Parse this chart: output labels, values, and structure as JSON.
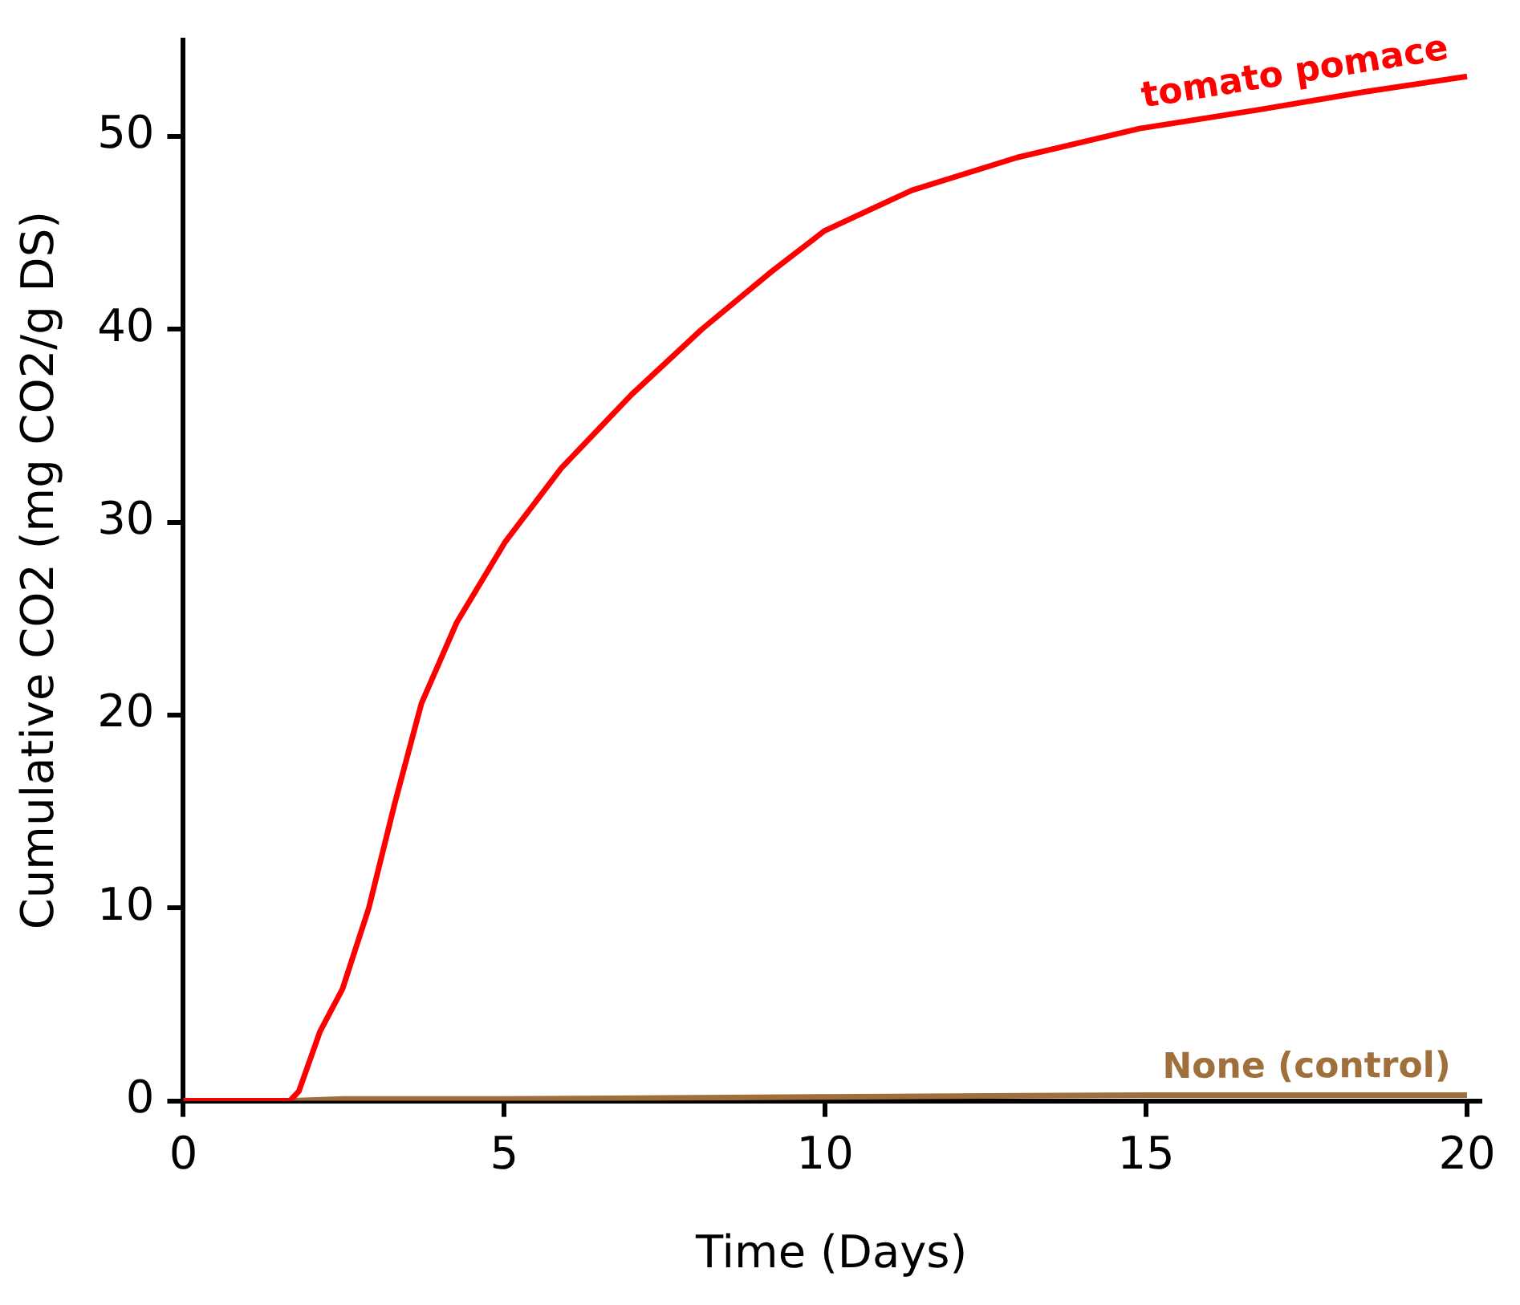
{
  "chart_data": {
    "type": "line",
    "xlabel": "Time (Days)",
    "ylabel": "Cumulative CO2 (mg CO2/g DS)",
    "xlim": [
      0,
      20.2
    ],
    "ylim": [
      0,
      55
    ],
    "xticks": [
      0,
      5,
      10,
      15,
      20
    ],
    "yticks": [
      0,
      10,
      20,
      30,
      40,
      50
    ],
    "grid": false,
    "legend": false,
    "marker": "none",
    "line_style": "solid",
    "series": [
      {
        "name": "tomato pomace",
        "color": "#ff0000",
        "x": [
          0,
          1.0,
          1.66,
          1.8,
          2.13,
          2.48,
          2.89,
          3.3,
          3.71,
          4.26,
          5.02,
          5.89,
          6.98,
          8.08,
          9.17,
          9.99,
          11.35,
          12.99,
          14.9,
          16.8,
          18.4,
          20.0
        ],
        "values": [
          0,
          0,
          0,
          0.5,
          3.6,
          5.8,
          10,
          15.5,
          20.6,
          24.8,
          29,
          32.8,
          36.6,
          40,
          43,
          45.1,
          47.2,
          48.9,
          50.4,
          51.4,
          52.3,
          53.1
        ]
      },
      {
        "name": "None (control)",
        "color": "#a0703c",
        "x": [
          0,
          1.7,
          2.5,
          5,
          10,
          15,
          20.0
        ],
        "values": [
          0,
          0,
          0.1,
          0.1,
          0.2,
          0.3,
          0.3
        ]
      }
    ]
  }
}
